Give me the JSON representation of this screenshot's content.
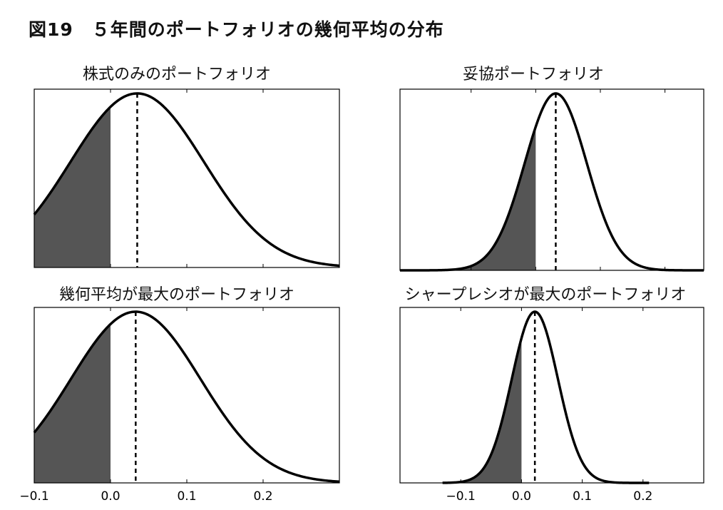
{
  "figure_title": "図19　５年間のポートフォリオの幾何平均の分布",
  "colors": {
    "shade": "#555555",
    "line": "#000000",
    "background": "#ffffff"
  },
  "chart_data": [
    {
      "type": "area",
      "title": "株式のみのポートフォリオ",
      "distribution": "normal",
      "mean": 0.035,
      "sd": 0.0875,
      "shade_upper": 0.0,
      "xlim": [
        -0.1,
        0.3
      ],
      "xticks": [
        -0.1,
        0.0,
        0.1,
        0.2
      ],
      "xticklabels": [
        "−0.1",
        "0.0",
        "0.1",
        "0.2"
      ],
      "show_xticklabels": false
    },
    {
      "type": "area",
      "title": "妥協ポートフォリオ",
      "distribution": "normal",
      "mean": 0.031,
      "sd": 0.048,
      "shade_upper": 0.0,
      "xlim": [
        -0.21,
        0.26
      ],
      "xticks": [
        -0.1,
        0.0,
        0.1,
        0.2
      ],
      "xticklabels": [
        "−0.1",
        "0.0",
        "0.1",
        "0.2"
      ],
      "show_xticklabels": false
    },
    {
      "type": "area",
      "title": "幾何平均が最大のポートフォリオ",
      "distribution": "normal",
      "mean": 0.033,
      "sd": 0.085,
      "shade_upper": 0.0,
      "xlim": [
        -0.1,
        0.3
      ],
      "xticks": [
        -0.1,
        0.0,
        0.1,
        0.2
      ],
      "xticklabels": [
        "−0.1",
        "0.0",
        "0.1",
        "0.2"
      ],
      "show_xticklabels": true
    },
    {
      "type": "area",
      "title": "シャープレシオが最大のポートフォリオ",
      "distribution": "normal",
      "mean": 0.022,
      "sd": 0.038,
      "shade_upper": 0.0,
      "xlim": [
        -0.2,
        0.3
      ],
      "xticks": [
        -0.1,
        0.0,
        0.1,
        0.2
      ],
      "xticklabels": [
        "−0.1",
        "0.0",
        "0.1",
        "0.2"
      ],
      "show_xticklabels": true,
      "curve_range": [
        -0.13,
        0.21
      ]
    }
  ]
}
